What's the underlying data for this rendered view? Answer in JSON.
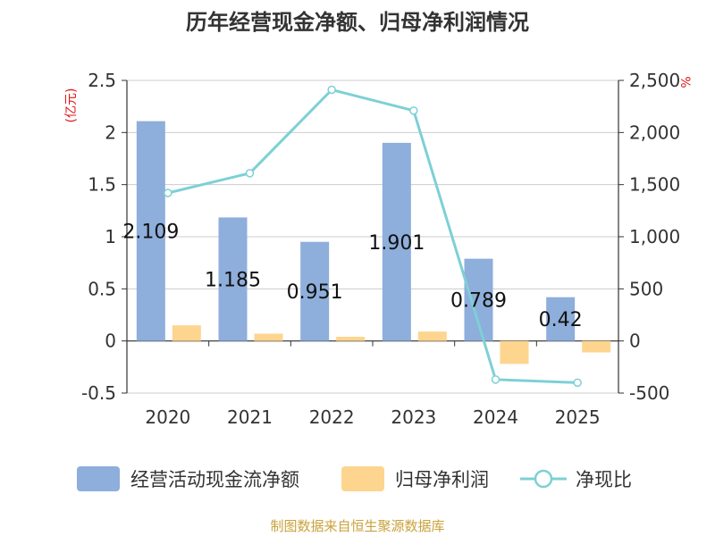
{
  "chart_data": {
    "type": "bar",
    "title": "历年经营现金净额、归母净利润情况",
    "categories": [
      "2020",
      "2021",
      "2022",
      "2023",
      "2024",
      "2025"
    ],
    "y_left": {
      "unit": "(亿元)",
      "range": [
        -0.5,
        2.5
      ],
      "ticks": [
        "-0.5",
        "0",
        "0.5",
        "1",
        "1.5",
        "2",
        "2.5"
      ]
    },
    "y_right": {
      "unit": "%",
      "range": [
        -500,
        2500
      ],
      "ticks": [
        "-500",
        "0",
        "500",
        "1,000",
        "1,500",
        "2,000",
        "2,500"
      ]
    },
    "series": [
      {
        "name": "经营活动现金流净额",
        "type": "bar",
        "axis": "left",
        "color": "#8eaedb",
        "values": [
          2.109,
          1.185,
          0.951,
          1.901,
          0.789,
          0.42
        ],
        "labels": [
          "2.109",
          "1.185",
          "0.951",
          "1.901",
          "0.789",
          "0.42"
        ]
      },
      {
        "name": "归母净利润",
        "type": "bar",
        "axis": "left",
        "color": "#fdd58f",
        "values": [
          0.15,
          0.07,
          0.04,
          0.09,
          -0.22,
          -0.11
        ]
      },
      {
        "name": "净现比",
        "type": "line",
        "axis": "right",
        "color": "#7dd0d6",
        "values": [
          1420,
          1610,
          2410,
          2210,
          -370,
          -400
        ]
      }
    ],
    "grid": true,
    "legend": "bottom"
  },
  "footer": {
    "source": "制图数据来自恒生聚源数据库"
  }
}
